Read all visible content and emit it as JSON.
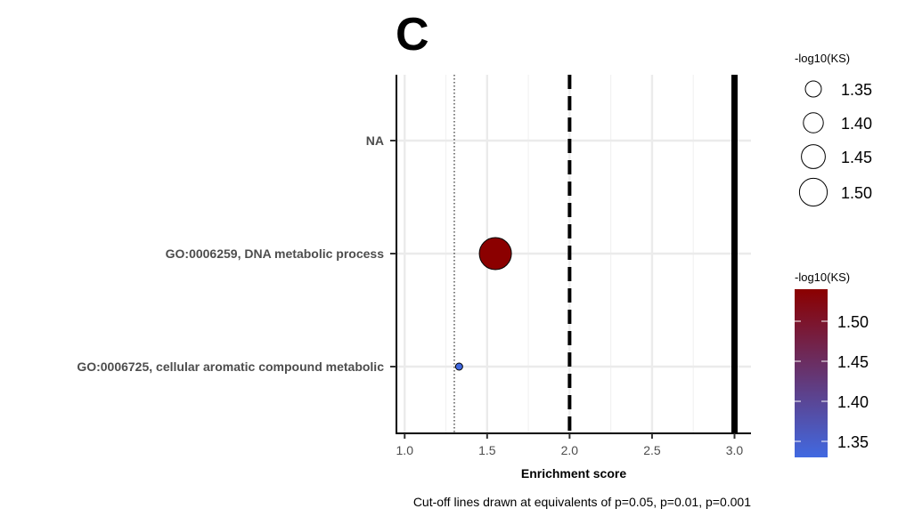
{
  "chart_data": {
    "type": "scatter",
    "panel_label": "C",
    "xlabel": "Enrichment score",
    "caption": "Cut-off lines drawn at equivalents of p=0.05, p=0.01, p=0.001",
    "xlim": [
      0.95,
      3.1
    ],
    "x_ticks": [
      1.0,
      1.5,
      2.0,
      2.5,
      3.0
    ],
    "x_tick_labels": [
      "1.0",
      "1.5",
      "2.0",
      "2.5",
      "3.0"
    ],
    "categories": [
      "NA",
      "GO:0006259, DNA metabolic process",
      "GO:0006725, cellular aromatic compound metabolic"
    ],
    "points": [
      {
        "category": "GO:0006259, DNA metabolic process",
        "x": 1.55,
        "neglog10KS": 1.54,
        "color": "#8b0000"
      },
      {
        "category": "GO:0006725, cellular aromatic compound metabolic",
        "x": 1.33,
        "neglog10KS": 1.33,
        "color": "#4169e1"
      }
    ],
    "cutoff_lines": [
      {
        "x": 1.301,
        "style": "dotted",
        "p": "p=0.05"
      },
      {
        "x": 2.0,
        "style": "dashed",
        "p": "p=0.01"
      },
      {
        "x": 3.0,
        "style": "solid",
        "p": "p=0.001"
      }
    ],
    "size_legend": {
      "title": "-log10(KS)",
      "values": [
        1.35,
        1.4,
        1.45,
        1.5
      ],
      "labels": [
        "1.35",
        "1.40",
        "1.45",
        "1.50"
      ]
    },
    "color_legend": {
      "title": "-log10(KS)",
      "range": [
        1.33,
        1.54
      ],
      "values": [
        1.35,
        1.4,
        1.45,
        1.5
      ],
      "labels": [
        "1.35",
        "1.40",
        "1.45",
        "1.50"
      ],
      "low_color": "#4169e1",
      "high_color": "#8b0000"
    },
    "grid": true,
    "legend_placement": "right"
  }
}
